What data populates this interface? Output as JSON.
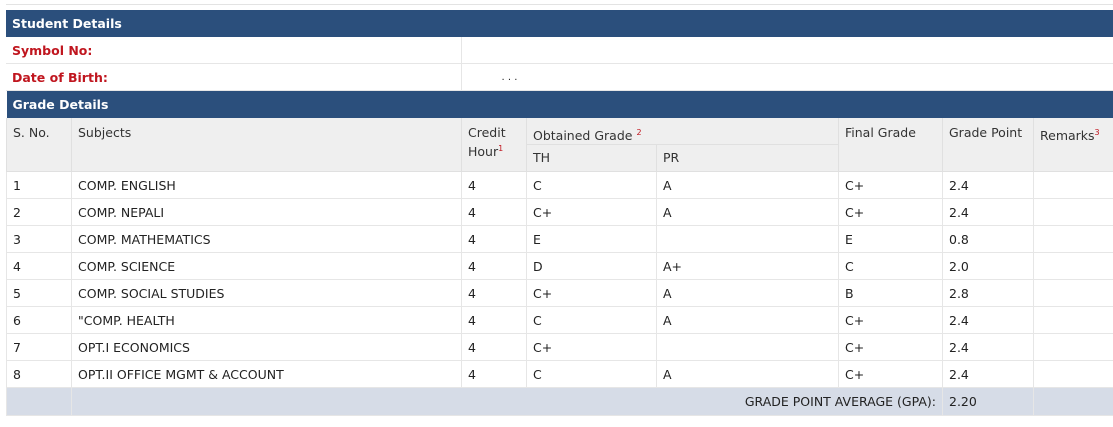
{
  "student_details": {
    "header": "Student Details",
    "symbol_label": "Symbol No:",
    "symbol_value": "",
    "dob_label": "Date of Birth:",
    "dob_value": ". . ."
  },
  "grade_details": {
    "header": "Grade Details",
    "columns": {
      "sno": "S. No.",
      "subjects": "Subjects",
      "credit": "Credit Hour",
      "credit_sup": "1",
      "obtained": "Obtained Grade",
      "obtained_sup": "2",
      "th": "TH",
      "pr": "PR",
      "final": "Final Grade",
      "gp": "Grade Point",
      "remarks": "Remarks",
      "remarks_sup": "3"
    },
    "rows": [
      {
        "sno": "1",
        "subject": "COMP. ENGLISH",
        "credit": "4",
        "th": "C",
        "pr": "A",
        "final": "C+",
        "gp": "2.4",
        "remarks": ""
      },
      {
        "sno": "2",
        "subject": "COMP. NEPALI",
        "credit": "4",
        "th": "C+",
        "pr": "A",
        "final": "C+",
        "gp": "2.4",
        "remarks": ""
      },
      {
        "sno": "3",
        "subject": "COMP. MATHEMATICS",
        "credit": "4",
        "th": "E",
        "pr": "",
        "final": "E",
        "gp": "0.8",
        "remarks": ""
      },
      {
        "sno": "4",
        "subject": "COMP. SCIENCE",
        "credit": "4",
        "th": "D",
        "pr": "A+",
        "final": "C",
        "gp": "2.0",
        "remarks": ""
      },
      {
        "sno": "5",
        "subject": "COMP. SOCIAL STUDIES",
        "credit": "4",
        "th": "C+",
        "pr": "A",
        "final": "B",
        "gp": "2.8",
        "remarks": ""
      },
      {
        "sno": "6",
        "subject": "\"COMP. HEALTH",
        "credit": "4",
        "th": "C",
        "pr": "A",
        "final": "C+",
        "gp": "2.4",
        "remarks": ""
      },
      {
        "sno": "7",
        "subject": "OPT.I ECONOMICS",
        "credit": "4",
        "th": "C+",
        "pr": "",
        "final": "C+",
        "gp": "2.4",
        "remarks": ""
      },
      {
        "sno": "8",
        "subject": "OPT.II OFFICE MGMT & ACCOUNT",
        "credit": "4",
        "th": "C",
        "pr": "A",
        "final": "C+",
        "gp": "2.4",
        "remarks": ""
      }
    ],
    "gpa_label": "GRADE POINT AVERAGE (GPA):",
    "gpa_value": "2.20"
  }
}
